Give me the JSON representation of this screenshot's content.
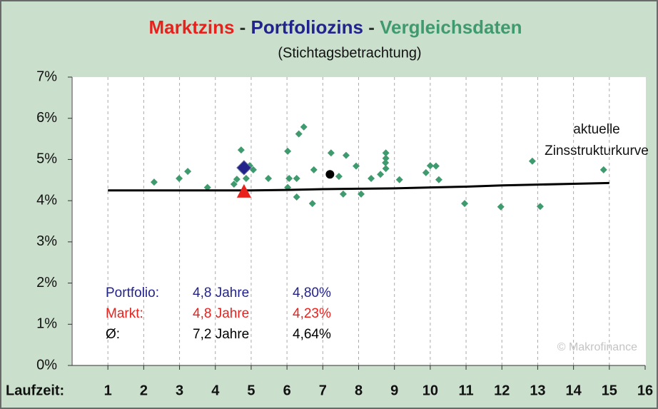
{
  "chart_data": {
    "type": "scatter",
    "title_parts": [
      {
        "text": "Marktzins",
        "color": "#e8211d"
      },
      {
        "text": " - ",
        "color": "#333333"
      },
      {
        "text": "Portfoliozins",
        "color": "#23238c"
      },
      {
        "text": " - ",
        "color": "#333333"
      },
      {
        "text": "Vergleichsdaten",
        "color": "#3f9a6e"
      }
    ],
    "subtitle": "(Stichtagsbetrachtung)",
    "xlabel": "Laufzeit:",
    "xlim": [
      0,
      16
    ],
    "xticks": [
      1,
      2,
      3,
      4,
      5,
      6,
      7,
      8,
      9,
      10,
      11,
      12,
      13,
      14,
      15,
      16
    ],
    "ylim": [
      0,
      7
    ],
    "yticks": [
      {
        "value": 0,
        "label": "0%"
      },
      {
        "value": 1,
        "label": "1%"
      },
      {
        "value": 2,
        "label": "2%"
      },
      {
        "value": 3,
        "label": "3%"
      },
      {
        "value": 4,
        "label": "4%"
      },
      {
        "value": 5,
        "label": "5%"
      },
      {
        "value": 6,
        "label": "6%"
      },
      {
        "value": 7,
        "label": "7%"
      }
    ],
    "grid": "x",
    "series": [
      {
        "color": "#3f9a6e",
        "marker": "diamond",
        "x": [
          2.29,
          2.99,
          3.23,
          3.78,
          4.52,
          4.6,
          4.72,
          4.74,
          4.86,
          4.96,
          5.06,
          5.48,
          6.02,
          6.02,
          6.06,
          6.27,
          6.27,
          6.33,
          6.47,
          6.71,
          6.75,
          7.23,
          7.45,
          7.57,
          7.65,
          7.93,
          8.07,
          8.35,
          8.61,
          8.75,
          8.76,
          8.76,
          8.76,
          9.14,
          9.88,
          10.0,
          10.16,
          10.24,
          10.96,
          11.97,
          12.85,
          13.07,
          14.84
        ],
        "values": [
          4.45,
          4.54,
          4.71,
          4.32,
          4.4,
          4.52,
          5.23,
          4.75,
          4.54,
          4.85,
          4.75,
          4.54,
          5.2,
          4.32,
          4.54,
          4.54,
          4.09,
          5.62,
          5.79,
          3.93,
          4.75,
          5.16,
          4.59,
          4.16,
          5.1,
          4.84,
          4.16,
          4.54,
          4.64,
          4.92,
          5.16,
          5.03,
          4.78,
          4.51,
          4.68,
          4.85,
          4.84,
          4.51,
          3.93,
          3.85,
          4.96,
          3.86,
          4.75
        ]
      },
      {
        "color": "#000000",
        "marker": "line",
        "x": [
          1,
          2,
          3,
          4,
          5,
          6,
          7,
          8,
          9,
          10,
          11,
          12,
          13,
          14,
          15
        ],
        "values": [
          4.25,
          4.25,
          4.25,
          4.25,
          4.25,
          4.26,
          4.28,
          4.29,
          4.3,
          4.32,
          4.34,
          4.37,
          4.39,
          4.41,
          4.43
        ]
      },
      {
        "color": "#e8211d",
        "marker": "triangle",
        "x": [
          4.8
        ],
        "values": [
          4.23
        ]
      },
      {
        "color": "#23238c",
        "marker": "bigdiamond",
        "x": [
          4.8
        ],
        "values": [
          4.8
        ]
      },
      {
        "color": "#000000",
        "marker": "circle",
        "x": [
          7.2
        ],
        "values": [
          4.64
        ]
      }
    ],
    "annotation": [
      "aktuelle",
      "Zinsstrukturkurve"
    ],
    "summary": [
      {
        "color": "#23238c",
        "cells": [
          "Portfolio:",
          "4,8 Jahre",
          "4,80%"
        ]
      },
      {
        "color": "#e8211d",
        "cells": [
          "Markt:",
          "4,8 Jahre",
          "4,23%"
        ]
      },
      {
        "color": "#000000",
        "cells": [
          "Ø:",
          "7,2 Jahre",
          "4,64%"
        ]
      }
    ],
    "watermark": "© Makrofinance"
  }
}
